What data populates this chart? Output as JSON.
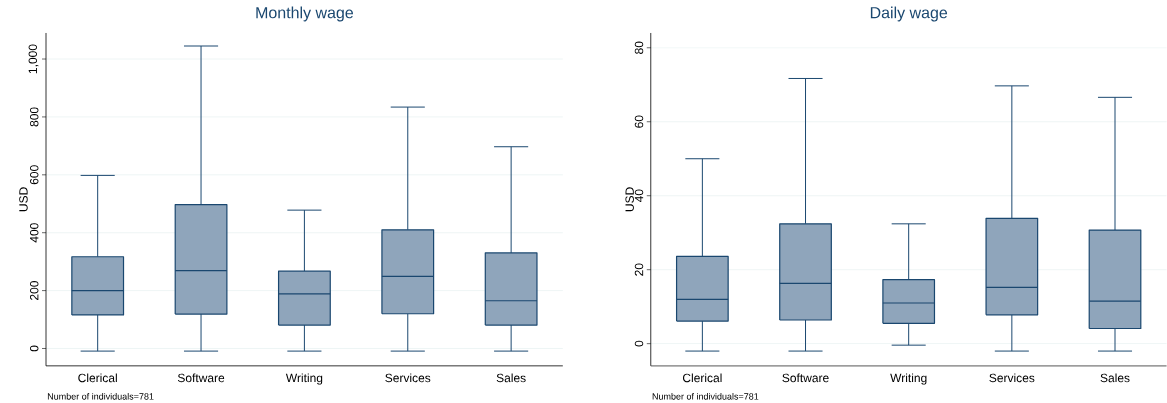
{
  "chart_data": [
    {
      "type": "box",
      "title": "Monthly wage",
      "ylabel": "USD",
      "categories": [
        "Clerical",
        "Software",
        "Writing",
        "Services",
        "Sales"
      ],
      "color": "#8fa5bb",
      "boxes": [
        {
          "low": -9,
          "q1": 116,
          "median": 200,
          "q3": 317,
          "high": 598
        },
        {
          "low": -9,
          "q1": 119,
          "median": 269,
          "q3": 497,
          "high": 1045
        },
        {
          "low": -9,
          "q1": 81,
          "median": 189,
          "q3": 267,
          "high": 478
        },
        {
          "low": -9,
          "q1": 120,
          "median": 249,
          "q3": 410,
          "high": 834
        },
        {
          "low": -9,
          "q1": 81,
          "median": 165,
          "q3": 330,
          "high": 697
        }
      ],
      "ylim": [
        -60,
        1090
      ],
      "yticks": [
        0,
        200,
        400,
        600,
        800,
        {
          "value": 1000,
          "label": "1,000"
        }
      ],
      "grid": "y",
      "annotations": [
        "Number of individuals=781"
      ]
    },
    {
      "type": "box",
      "title": "Daily wage",
      "ylabel": "USD",
      "categories": [
        "Clerical",
        "Software",
        "Writing",
        "Services",
        "Sales"
      ],
      "color": "#8fa5bb",
      "boxes": [
        {
          "low": -2,
          "q1": 6.1,
          "median": 12,
          "q3": 23.6,
          "high": 50
        },
        {
          "low": -2,
          "q1": 6.4,
          "median": 16.3,
          "q3": 32.4,
          "high": 71.7
        },
        {
          "low": -0.4,
          "q1": 5.5,
          "median": 11,
          "q3": 17.3,
          "high": 32.4
        },
        {
          "low": -2,
          "q1": 7.8,
          "median": 15.2,
          "q3": 33.9,
          "high": 69.7
        },
        {
          "low": -2,
          "q1": 4.1,
          "median": 11.5,
          "q3": 30.7,
          "high": 66.6
        }
      ],
      "ylim": [
        -6,
        84
      ],
      "yticks": [
        0,
        20,
        40,
        60,
        80
      ],
      "grid": "y",
      "annotations": [
        "Number of individuals=781"
      ]
    }
  ]
}
